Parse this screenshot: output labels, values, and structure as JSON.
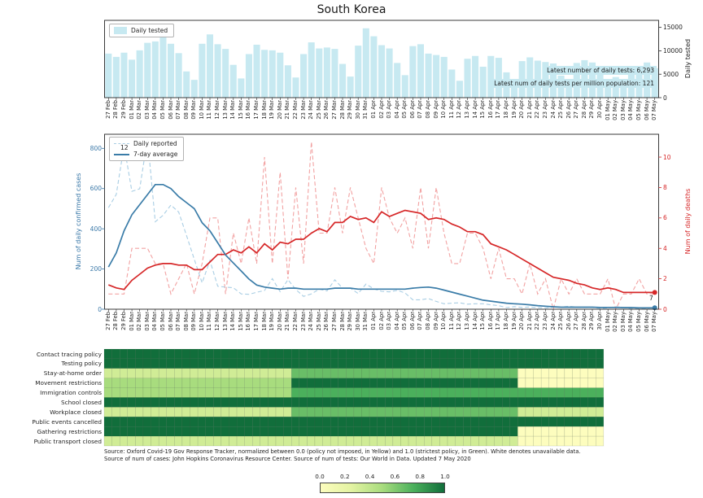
{
  "title": "South Korea",
  "chart_data": {
    "dates": [
      "27 Feb",
      "28 Feb",
      "29 Feb",
      "01 Mar",
      "02 Mar",
      "03 Mar",
      "04 Mar",
      "05 Mar",
      "06 Mar",
      "07 Mar",
      "08 Mar",
      "09 Mar",
      "10 Mar",
      "11 Mar",
      "12 Mar",
      "13 Mar",
      "14 Mar",
      "15 Mar",
      "16 Mar",
      "17 Mar",
      "18 Mar",
      "19 Mar",
      "20 Mar",
      "21 Mar",
      "22 Mar",
      "23 Mar",
      "24 Mar",
      "25 Mar",
      "26 Mar",
      "27 Mar",
      "28 Mar",
      "29 Mar",
      "30 Mar",
      "31 Mar",
      "01 Apr",
      "02 Apr",
      "03 Apr",
      "04 Apr",
      "05 Apr",
      "06 Apr",
      "07 Apr",
      "08 Apr",
      "09 Apr",
      "10 Apr",
      "11 Apr",
      "12 Apr",
      "13 Apr",
      "14 Apr",
      "15 Apr",
      "16 Apr",
      "17 Apr",
      "18 Apr",
      "19 Apr",
      "20 Apr",
      "21 Apr",
      "22 Apr",
      "23 Apr",
      "24 Apr",
      "25 Apr",
      "26 Apr",
      "27 Apr",
      "28 Apr",
      "29 Apr",
      "30 Apr",
      "01 May",
      "02 May",
      "03 May",
      "04 May",
      "05 May",
      "06 May",
      "07 May"
    ],
    "daily_tested": {
      "type": "bar",
      "legend_label": "Daily tested",
      "ylabel": "Daily tested",
      "yticks": [
        0,
        5000,
        10000,
        15000
      ],
      "ylim": [
        0,
        16500
      ],
      "bar_color": "#c7e9f1",
      "annotations": {
        "latest_tests": "Latest number of daily tests: 6,293",
        "latest_tests_per_million": "Latest num of daily tests per million population: 121"
      },
      "values": [
        9400,
        8700,
        9600,
        8100,
        10100,
        11700,
        12000,
        13500,
        11500,
        9500,
        5600,
        3800,
        11500,
        13500,
        11400,
        10400,
        7000,
        4100,
        9300,
        11300,
        10200,
        10100,
        9600,
        6900,
        4300,
        9300,
        11800,
        10500,
        10700,
        10400,
        7200,
        4500,
        11100,
        14800,
        13100,
        11200,
        10500,
        7400,
        4800,
        11000,
        11400,
        9400,
        9100,
        8700,
        6000,
        3600,
        8300,
        8900,
        6600,
        8900,
        8500,
        5400,
        3200,
        7800,
        8600,
        7900,
        7600,
        7300,
        4700,
        3000,
        7400,
        8000,
        7500,
        4900,
        3900,
        4400,
        3000,
        6700,
        5200,
        7500,
        6293
      ]
    },
    "cases_deaths": {
      "type": "line",
      "ylabel_left": "Num of daily confirmed cases",
      "ylabel_right": "Num of daily deaths",
      "yticks_left": [
        0,
        200,
        400,
        600,
        800
      ],
      "yticks_right": [
        0,
        2,
        4,
        6,
        8,
        10
      ],
      "ylim_left": [
        0,
        870
      ],
      "ylim_right": [
        0,
        11.5
      ],
      "legend": {
        "daily_reported": "Daily reported",
        "avg7": "7-day average"
      },
      "colors": {
        "daily_reported": "#a9cee4",
        "avg7_reported": "#3a7ca8",
        "daily_deaths": "#f2a2a2",
        "avg7_deaths": "#d62728"
      },
      "series": {
        "daily_reported": [
          505,
          571,
          813,
          586,
          599,
          851,
          435,
          467,
          518,
          483,
          367,
          248,
          131,
          242,
          114,
          110,
          107,
          76,
          74,
          84,
          93,
          152,
          87,
          147,
          98,
          64,
          76,
          100,
          91,
          146,
          105,
          105,
          78,
          125,
          101,
          89,
          86,
          94,
          81,
          47,
          47,
          53,
          39,
          27,
          30,
          32,
          25,
          27,
          27,
          22,
          18,
          8,
          13,
          9,
          11,
          8,
          6,
          10,
          10,
          15,
          10,
          9,
          9,
          4,
          6,
          13,
          8,
          3,
          2,
          2,
          12
        ],
        "avg7_reported": [
          210,
          280,
          390,
          470,
          520,
          570,
          620,
          620,
          600,
          560,
          530,
          500,
          430,
          390,
          330,
          270,
          230,
          190,
          150,
          120,
          110,
          105,
          100,
          105,
          105,
          100,
          100,
          100,
          100,
          105,
          105,
          105,
          100,
          100,
          100,
          100,
          100,
          100,
          100,
          105,
          108,
          110,
          105,
          95,
          85,
          75,
          65,
          55,
          45,
          40,
          35,
          30,
          27,
          25,
          22,
          18,
          15,
          12,
          10,
          10,
          10,
          10,
          10,
          9,
          9,
          9,
          8,
          8,
          7,
          7,
          7
        ],
        "daily_deaths": [
          1,
          1,
          1,
          4,
          4,
          4,
          3,
          3,
          1,
          2,
          3,
          1,
          3,
          6,
          6,
          1,
          5,
          3,
          6,
          3,
          10,
          3,
          9,
          2,
          8,
          3,
          11,
          5,
          5,
          8,
          5,
          8,
          6,
          4,
          3,
          8,
          6,
          5,
          6,
          4,
          8,
          4,
          8,
          5,
          3,
          3,
          5,
          5,
          4,
          2,
          4,
          2,
          2,
          1,
          3,
          1,
          2,
          0,
          2,
          1,
          2,
          1,
          1,
          1,
          2,
          0,
          1,
          1,
          2,
          1,
          1
        ],
        "avg7_deaths": [
          1.6,
          1.4,
          1.3,
          1.9,
          2.3,
          2.7,
          2.9,
          3.0,
          3.0,
          2.9,
          2.9,
          2.6,
          2.6,
          3.1,
          3.6,
          3.6,
          3.9,
          3.7,
          4.1,
          3.7,
          4.3,
          3.9,
          4.4,
          4.3,
          4.6,
          4.6,
          5.0,
          5.3,
          5.1,
          5.7,
          5.7,
          6.1,
          5.9,
          6.0,
          5.7,
          6.4,
          6.1,
          6.3,
          6.5,
          6.4,
          6.3,
          5.9,
          6.0,
          5.9,
          5.6,
          5.4,
          5.1,
          5.1,
          4.9,
          4.3,
          4.1,
          3.9,
          3.6,
          3.3,
          3.0,
          2.7,
          2.4,
          2.1,
          2.0,
          1.9,
          1.7,
          1.6,
          1.4,
          1.3,
          1.4,
          1.3,
          1.1,
          1.1,
          1.1,
          1.1,
          1.1
        ]
      },
      "endpoint_labels": {
        "daily_reported_last": "12",
        "avg7_last": "7"
      }
    },
    "policies": {
      "type": "heatmap",
      "note": "runs = [num_days, normalized_policy_value]; null = unavailable (white)",
      "rows": [
        {
          "label": "Contact tracing policy",
          "runs": [
            [
              64,
              1.0
            ],
            [
              7,
              null
            ]
          ]
        },
        {
          "label": "Testing policy",
          "runs": [
            [
              64,
              1.0
            ],
            [
              7,
              null
            ]
          ]
        },
        {
          "label": "Stay-at-home order",
          "runs": [
            [
              24,
              0.33
            ],
            [
              29,
              0.67
            ],
            [
              11,
              0.0
            ],
            [
              7,
              null
            ]
          ]
        },
        {
          "label": "Movement restrictions",
          "runs": [
            [
              24,
              0.5
            ],
            [
              29,
              1.0
            ],
            [
              11,
              0.0
            ],
            [
              7,
              null
            ]
          ]
        },
        {
          "label": "Immigration controls",
          "runs": [
            [
              24,
              0.5
            ],
            [
              40,
              0.75
            ],
            [
              7,
              null
            ]
          ]
        },
        {
          "label": "School closed",
          "runs": [
            [
              64,
              1.0
            ],
            [
              7,
              null
            ]
          ]
        },
        {
          "label": "Workplace closed",
          "runs": [
            [
              24,
              0.33
            ],
            [
              29,
              0.67
            ],
            [
              11,
              0.33
            ],
            [
              7,
              null
            ]
          ]
        },
        {
          "label": "Public events cancelled",
          "runs": [
            [
              64,
              1.0
            ],
            [
              7,
              null
            ]
          ]
        },
        {
          "label": "Gathering restrictions",
          "runs": [
            [
              53,
              1.0
            ],
            [
              11,
              0.0
            ],
            [
              7,
              null
            ]
          ]
        },
        {
          "label": "Public transport closed",
          "runs": [
            [
              53,
              0.33
            ],
            [
              11,
              0.0
            ],
            [
              7,
              null
            ]
          ]
        }
      ],
      "colorbar_ticks": [
        "0.0",
        "0.2",
        "0.4",
        "0.6",
        "0.8",
        "1.0"
      ],
      "colormap_stops": [
        [
          0.0,
          "#fdfdbe"
        ],
        [
          0.25,
          "#e3f3a2"
        ],
        [
          0.5,
          "#a8dc7e"
        ],
        [
          0.75,
          "#4bb05c"
        ],
        [
          1.0,
          "#116e3b"
        ]
      ]
    }
  },
  "source": {
    "line1": "Source: Oxford Covid-19 Gov Response Tracker, normalized between 0.0 (policy not imposed, in Yellow) and 1.0 (strictest policy, in Green). White denotes unavailable data.",
    "line2": "Source of num of cases: John Hopkins Coronavirus Resource Center. Source of num of tests: Our World in Data. Updated 7 May 2020"
  }
}
